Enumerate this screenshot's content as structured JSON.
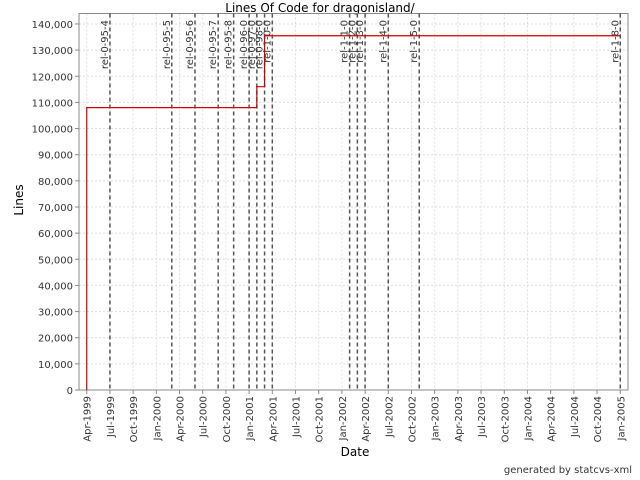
{
  "chart_data": {
    "type": "line",
    "title": "Lines Of Code for dragonisland/",
    "x_label": "Date",
    "y_label": "Lines",
    "footer": "generated by statcvs-xml",
    "step": true,
    "grid": true,
    "x": [
      "1999-04",
      "1999-04",
      "2001-02",
      "2001-02",
      "2001-03",
      "2001-03",
      "2005-01"
    ],
    "series": [
      {
        "name": "Lines",
        "color": "#cc0000",
        "values": [
          0,
          108000,
          108000,
          116000,
          116000,
          135500,
          135500
        ]
      }
    ],
    "xlim": [
      "1999-03",
      "2005-02"
    ],
    "xticks": [
      {
        "value": "1999-04",
        "label": "Apr-1999"
      },
      {
        "value": "1999-07",
        "label": "Jul-1999"
      },
      {
        "value": "1999-10",
        "label": "Oct-1999"
      },
      {
        "value": "2000-01",
        "label": "Jan-2000"
      },
      {
        "value": "2000-04",
        "label": "Apr-2000"
      },
      {
        "value": "2000-07",
        "label": "Jul-2000"
      },
      {
        "value": "2000-10",
        "label": "Oct-2000"
      },
      {
        "value": "2001-01",
        "label": "Jan-2001"
      },
      {
        "value": "2001-04",
        "label": "Apr-2001"
      },
      {
        "value": "2001-07",
        "label": "Jul-2001"
      },
      {
        "value": "2001-10",
        "label": "Oct-2001"
      },
      {
        "value": "2002-01",
        "label": "Jan-2002"
      },
      {
        "value": "2002-04",
        "label": "Apr-2002"
      },
      {
        "value": "2002-07",
        "label": "Jul-2002"
      },
      {
        "value": "2002-10",
        "label": "Oct-2002"
      },
      {
        "value": "2003-01",
        "label": "Jan-2003"
      },
      {
        "value": "2003-04",
        "label": "Apr-2003"
      },
      {
        "value": "2003-07",
        "label": "Jul-2003"
      },
      {
        "value": "2003-10",
        "label": "Oct-2003"
      },
      {
        "value": "2004-01",
        "label": "Jan-2004"
      },
      {
        "value": "2004-04",
        "label": "Apr-2004"
      },
      {
        "value": "2004-07",
        "label": "Jul-2004"
      },
      {
        "value": "2004-10",
        "label": "Oct-2004"
      },
      {
        "value": "2005-01",
        "label": "Jan-2005"
      }
    ],
    "ylim": [
      0,
      144000
    ],
    "yticks": [
      {
        "value": 0,
        "label": "0"
      },
      {
        "value": 10000,
        "label": "10,000"
      },
      {
        "value": 20000,
        "label": "20,000"
      },
      {
        "value": 30000,
        "label": "30,000"
      },
      {
        "value": 40000,
        "label": "40,000"
      },
      {
        "value": 50000,
        "label": "50,000"
      },
      {
        "value": 60000,
        "label": "60,000"
      },
      {
        "value": 70000,
        "label": "70,000"
      },
      {
        "value": 80000,
        "label": "80,000"
      },
      {
        "value": 90000,
        "label": "90,000"
      },
      {
        "value": 100000,
        "label": "100,000"
      },
      {
        "value": 110000,
        "label": "110,000"
      },
      {
        "value": 120000,
        "label": "120,000"
      },
      {
        "value": 130000,
        "label": "130,000"
      },
      {
        "value": 140000,
        "label": "140,000"
      }
    ],
    "markers": [
      {
        "x": "1999-07",
        "label": "rel-0-95-4"
      },
      {
        "x": "2000-03",
        "label": "rel-0-95-5"
      },
      {
        "x": "2000-06",
        "label": "rel-0-95-6"
      },
      {
        "x": "2000-09",
        "label": "rel-0-95-7"
      },
      {
        "x": "2000-11",
        "label": "rel-0-95-8"
      },
      {
        "x": "2001-01",
        "label": "rel-0-96-0"
      },
      {
        "x": "2001-02",
        "label": "rel-0-97-0"
      },
      {
        "x": "2001-03",
        "label": "rel-0-98-0"
      },
      {
        "x": "2001-04",
        "label": "rel-1-0-0"
      },
      {
        "x": "2002-02",
        "label": "rel-1-1-0"
      },
      {
        "x": "2002-03",
        "label": "rel-1-2-0"
      },
      {
        "x": "2002-04",
        "label": "rel-1-3-0"
      },
      {
        "x": "2002-07",
        "label": "rel-1-4-0"
      },
      {
        "x": "2002-11",
        "label": "rel-1-5-0"
      },
      {
        "x": "2005-01",
        "label": "rel-1-8-0"
      }
    ]
  }
}
